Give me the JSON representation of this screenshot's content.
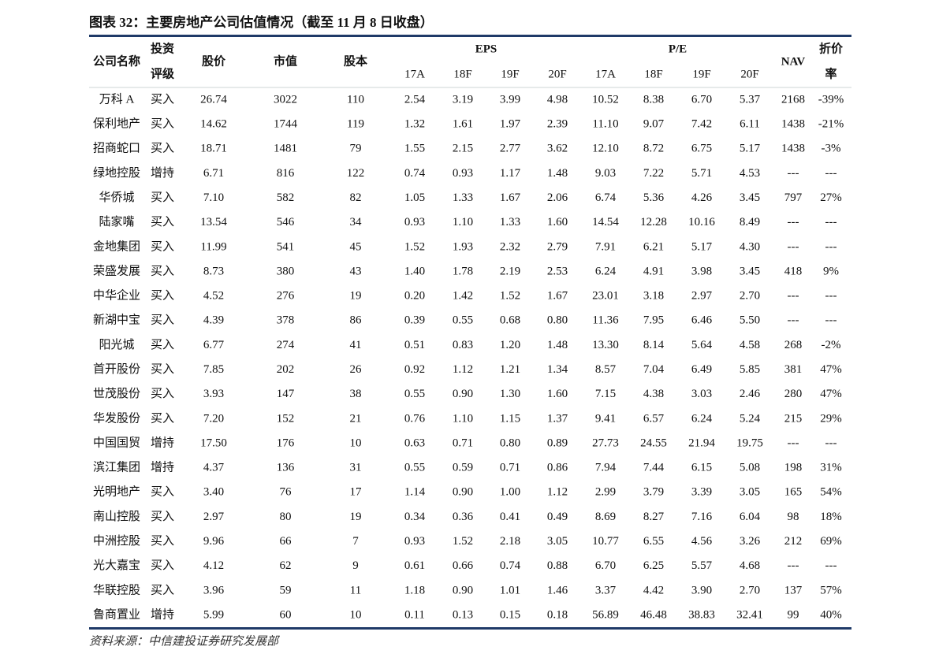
{
  "title": "图表 32：主要房地产公司估值情况（截至 11 月 8 日收盘）",
  "table": {
    "headers": {
      "company": "公司名称",
      "rating": [
        "投资",
        "评级"
      ],
      "price": "股价",
      "cap": "市值",
      "shares": "股本",
      "nav": "NAV",
      "discount": [
        "折价",
        "率"
      ]
    },
    "groups": [
      {
        "label": "EPS",
        "columns": [
          "17A",
          "18F",
          "19F",
          "20F"
        ]
      },
      {
        "label": "P/E",
        "columns": [
          "17A",
          "18F",
          "19F",
          "20F"
        ]
      }
    ],
    "rows": [
      [
        "万科 A",
        "买入",
        "26.74",
        "3022",
        "110",
        "2.54",
        "3.19",
        "3.99",
        "4.98",
        "10.52",
        "8.38",
        "6.70",
        "5.37",
        "2168",
        "-39%"
      ],
      [
        "保利地产",
        "买入",
        "14.62",
        "1744",
        "119",
        "1.32",
        "1.61",
        "1.97",
        "2.39",
        "11.10",
        "9.07",
        "7.42",
        "6.11",
        "1438",
        "-21%"
      ],
      [
        "招商蛇口",
        "买入",
        "18.71",
        "1481",
        "79",
        "1.55",
        "2.15",
        "2.77",
        "3.62",
        "12.10",
        "8.72",
        "6.75",
        "5.17",
        "1438",
        "-3%"
      ],
      [
        "绿地控股",
        "增持",
        "6.71",
        "816",
        "122",
        "0.74",
        "0.93",
        "1.17",
        "1.48",
        "9.03",
        "7.22",
        "5.71",
        "4.53",
        "---",
        "---"
      ],
      [
        "华侨城",
        "买入",
        "7.10",
        "582",
        "82",
        "1.05",
        "1.33",
        "1.67",
        "2.06",
        "6.74",
        "5.36",
        "4.26",
        "3.45",
        "797",
        "27%"
      ],
      [
        "陆家嘴",
        "买入",
        "13.54",
        "546",
        "34",
        "0.93",
        "1.10",
        "1.33",
        "1.60",
        "14.54",
        "12.28",
        "10.16",
        "8.49",
        "---",
        "---"
      ],
      [
        "金地集团",
        "买入",
        "11.99",
        "541",
        "45",
        "1.52",
        "1.93",
        "2.32",
        "2.79",
        "7.91",
        "6.21",
        "5.17",
        "4.30",
        "---",
        "---"
      ],
      [
        "荣盛发展",
        "买入",
        "8.73",
        "380",
        "43",
        "1.40",
        "1.78",
        "2.19",
        "2.53",
        "6.24",
        "4.91",
        "3.98",
        "3.45",
        "418",
        "9%"
      ],
      [
        "中华企业",
        "买入",
        "4.52",
        "276",
        "19",
        "0.20",
        "1.42",
        "1.52",
        "1.67",
        "23.01",
        "3.18",
        "2.97",
        "2.70",
        "---",
        "---"
      ],
      [
        "新湖中宝",
        "买入",
        "4.39",
        "378",
        "86",
        "0.39",
        "0.55",
        "0.68",
        "0.80",
        "11.36",
        "7.95",
        "6.46",
        "5.50",
        "---",
        "---"
      ],
      [
        "阳光城",
        "买入",
        "6.77",
        "274",
        "41",
        "0.51",
        "0.83",
        "1.20",
        "1.48",
        "13.30",
        "8.14",
        "5.64",
        "4.58",
        "268",
        "-2%"
      ],
      [
        "首开股份",
        "买入",
        "7.85",
        "202",
        "26",
        "0.92",
        "1.12",
        "1.21",
        "1.34",
        "8.57",
        "7.04",
        "6.49",
        "5.85",
        "381",
        "47%"
      ],
      [
        "世茂股份",
        "买入",
        "3.93",
        "147",
        "38",
        "0.55",
        "0.90",
        "1.30",
        "1.60",
        "7.15",
        "4.38",
        "3.03",
        "2.46",
        "280",
        "47%"
      ],
      [
        "华发股份",
        "买入",
        "7.20",
        "152",
        "21",
        "0.76",
        "1.10",
        "1.15",
        "1.37",
        "9.41",
        "6.57",
        "6.24",
        "5.24",
        "215",
        "29%"
      ],
      [
        "中国国贸",
        "增持",
        "17.50",
        "176",
        "10",
        "0.63",
        "0.71",
        "0.80",
        "0.89",
        "27.73",
        "24.55",
        "21.94",
        "19.75",
        "---",
        "---"
      ],
      [
        "滨江集团",
        "增持",
        "4.37",
        "136",
        "31",
        "0.55",
        "0.59",
        "0.71",
        "0.86",
        "7.94",
        "7.44",
        "6.15",
        "5.08",
        "198",
        "31%"
      ],
      [
        "光明地产",
        "买入",
        "3.40",
        "76",
        "17",
        "1.14",
        "0.90",
        "1.00",
        "1.12",
        "2.99",
        "3.79",
        "3.39",
        "3.05",
        "165",
        "54%"
      ],
      [
        "南山控股",
        "买入",
        "2.97",
        "80",
        "19",
        "0.34",
        "0.36",
        "0.41",
        "0.49",
        "8.69",
        "8.27",
        "7.16",
        "6.04",
        "98",
        "18%"
      ],
      [
        "中洲控股",
        "买入",
        "9.96",
        "66",
        "7",
        "0.93",
        "1.52",
        "2.18",
        "3.05",
        "10.77",
        "6.55",
        "4.56",
        "3.26",
        "212",
        "69%"
      ],
      [
        "光大嘉宝",
        "买入",
        "4.12",
        "62",
        "9",
        "0.61",
        "0.66",
        "0.74",
        "0.88",
        "6.70",
        "6.25",
        "5.57",
        "4.68",
        "---",
        "---"
      ],
      [
        "华联控股",
        "买入",
        "3.96",
        "59",
        "11",
        "1.18",
        "0.90",
        "1.01",
        "1.46",
        "3.37",
        "4.42",
        "3.90",
        "2.70",
        "137",
        "57%"
      ],
      [
        "鲁商置业",
        "增持",
        "5.99",
        "60",
        "10",
        "0.11",
        "0.13",
        "0.15",
        "0.18",
        "56.89",
        "46.48",
        "38.83",
        "32.41",
        "99",
        "40%"
      ]
    ]
  },
  "source": "资料来源：中信建投证券研究发展部"
}
